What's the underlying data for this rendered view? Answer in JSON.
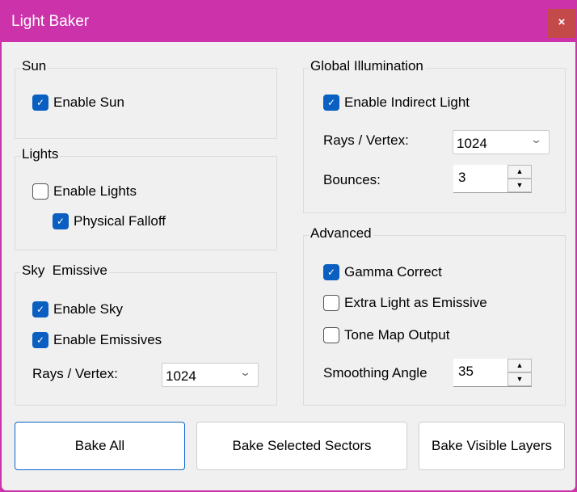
{
  "window": {
    "title": "Light Baker",
    "close_label": "×"
  },
  "sun": {
    "title": "Sun",
    "enable_sun": {
      "label": "Enable Sun",
      "checked": true
    }
  },
  "lights": {
    "title": "Lights",
    "enable_lights": {
      "label": "Enable Lights",
      "checked": false
    },
    "physical_falloff": {
      "label": "Physical Falloff",
      "checked": true
    }
  },
  "sky": {
    "title": "Sky  Emissive",
    "enable_sky": {
      "label": "Enable Sky",
      "checked": true
    },
    "enable_emissives": {
      "label": "Enable Emissives",
      "checked": true
    },
    "rays_label": "Rays / Vertex:",
    "rays_value": "1024"
  },
  "gi": {
    "title": "Global Illumination",
    "enable_indirect": {
      "label": "Enable Indirect Light",
      "checked": true
    },
    "rays_label": "Rays / Vertex:",
    "rays_value": "1024",
    "bounces_label": "Bounces:",
    "bounces_value": "3"
  },
  "advanced": {
    "title": "Advanced",
    "gamma": {
      "label": "Gamma Correct",
      "checked": true
    },
    "extra_light": {
      "label": "Extra Light as Emissive",
      "checked": false
    },
    "tone_map": {
      "label": "Tone Map Output",
      "checked": false
    },
    "smoothing_label": "Smoothing Angle",
    "smoothing_value": "35"
  },
  "buttons": {
    "bake_all": "Bake All",
    "bake_selected": "Bake Selected Sectors",
    "bake_visible": "Bake Visible Layers"
  },
  "colors": {
    "titlebar": "#cc33aa",
    "close": "#c44a4a",
    "accent": "#0a5fc0"
  }
}
